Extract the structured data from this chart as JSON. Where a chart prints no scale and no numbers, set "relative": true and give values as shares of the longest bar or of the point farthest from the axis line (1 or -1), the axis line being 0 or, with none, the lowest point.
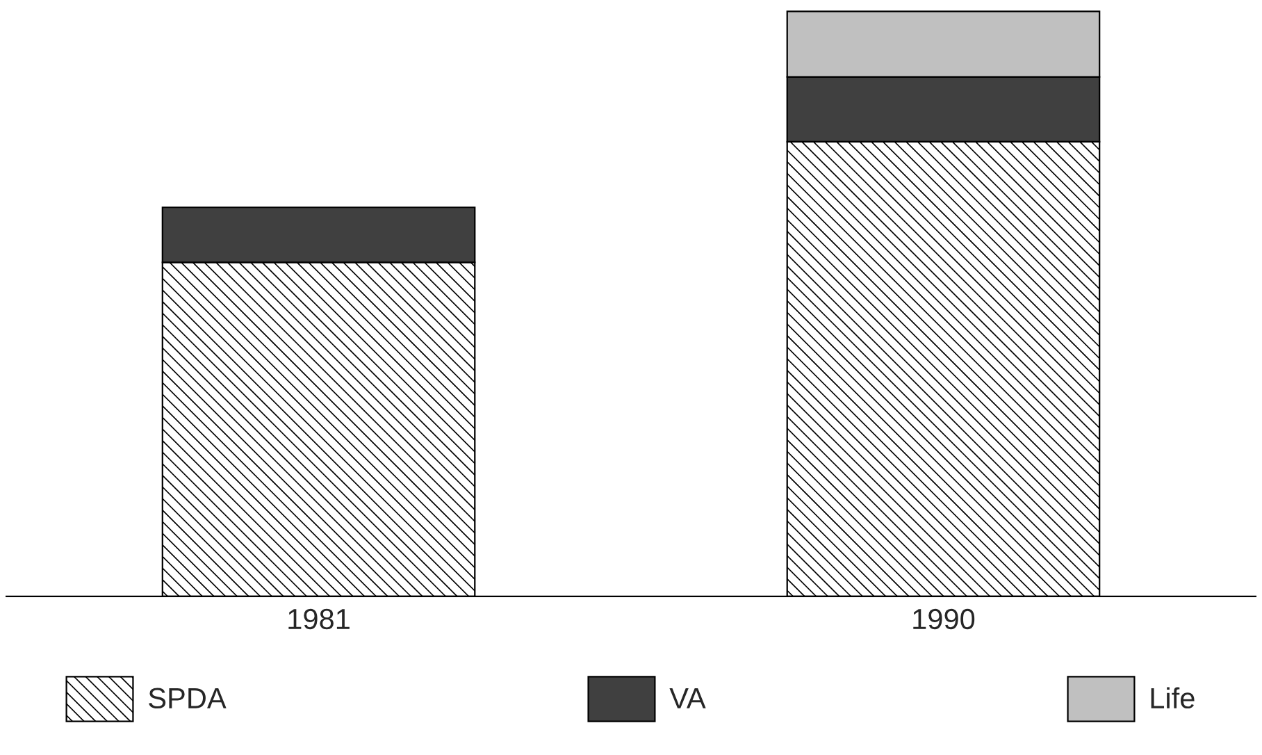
{
  "chart_data": {
    "type": "bar",
    "relative": true,
    "stacked": true,
    "categories": [
      "1981",
      "1990"
    ],
    "series": [
      {
        "name": "SPDA",
        "color": "#000000",
        "values": [
          0.571,
          0.777
        ]
      },
      {
        "name": "VA",
        "color": "#404040",
        "values": [
          0.094,
          0.111
        ]
      },
      {
        "name": "Life",
        "color": "#c0c0c0",
        "values": [
          null,
          0.112
        ]
      }
    ],
    "legend": "bottom",
    "grid": false
  }
}
